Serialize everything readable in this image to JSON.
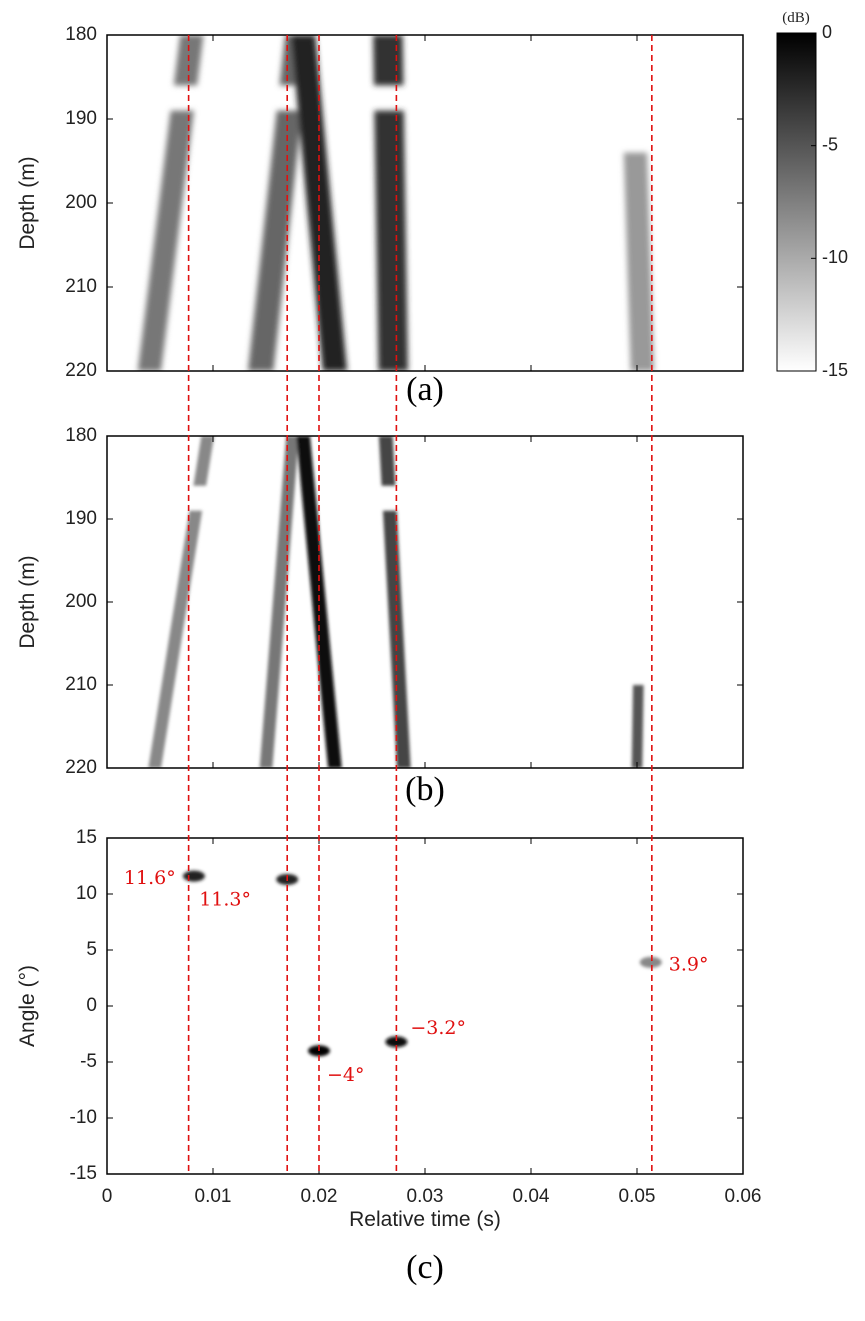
{
  "chart_data": [
    {
      "type": "heatmap",
      "panel_label": "(a)",
      "ylabel": "Depth (m)",
      "ylim": [
        220,
        180
      ],
      "y_ticks": [
        "180",
        "190",
        "200",
        "210",
        "220"
      ],
      "xlim": [
        0,
        0.06
      ],
      "tracks": [
        {
          "x_top": 0.008,
          "x_bottom": 0.004,
          "width": 0.0022,
          "level": -7,
          "gaps": [
            186,
            189
          ]
        },
        {
          "x_top": 0.018,
          "x_bottom": 0.0145,
          "width": 0.0024,
          "level": -6,
          "gaps": [
            186,
            189
          ]
        },
        {
          "x_top": 0.0185,
          "x_bottom": 0.0215,
          "width": 0.0023,
          "level": -2,
          "gaps": []
        },
        {
          "x_top": 0.0265,
          "x_bottom": 0.027,
          "width": 0.0028,
          "level": -3,
          "gaps": [
            186,
            189
          ]
        },
        {
          "x_top": 0.0495,
          "x_bottom": 0.0505,
          "width": 0.0022,
          "level": -9,
          "y_start": 194
        }
      ]
    },
    {
      "type": "heatmap",
      "panel_label": "(b)",
      "ylabel": "Depth (m)",
      "ylim": [
        220,
        180
      ],
      "y_ticks": [
        "180",
        "190",
        "200",
        "210",
        "220"
      ],
      "xlim": [
        0,
        0.06
      ],
      "tracks": [
        {
          "x_top": 0.0095,
          "x_bottom": 0.0045,
          "width": 0.0012,
          "level": -8,
          "gaps": [
            186,
            189
          ]
        },
        {
          "x_top": 0.0175,
          "x_bottom": 0.015,
          "width": 0.0012,
          "level": -7,
          "gaps": []
        },
        {
          "x_top": 0.0185,
          "x_bottom": 0.0215,
          "width": 0.0013,
          "level": -1,
          "gaps": []
        },
        {
          "x_top": 0.0263,
          "x_bottom": 0.028,
          "width": 0.0013,
          "level": -4,
          "gaps": [
            186,
            189
          ]
        },
        {
          "x_top": 0.0505,
          "x_bottom": 0.05,
          "width": 0.001,
          "level": -5,
          "y_start": 210
        }
      ]
    },
    {
      "type": "heatmap",
      "panel_label": "(c)",
      "xlabel": "Relative time (s)",
      "ylabel": "Angle (°)",
      "xlim": [
        0,
        0.06
      ],
      "ylim": [
        -15,
        15
      ],
      "x_ticks": [
        "0",
        "0.01",
        "0.02",
        "0.03",
        "0.04",
        "0.05",
        "0.06"
      ],
      "y_ticks": [
        "15",
        "10",
        "5",
        "0",
        "-5",
        "-10",
        "-15"
      ],
      "peaks": [
        {
          "t": 0.0082,
          "angle": 11.6,
          "level": -2
        },
        {
          "t": 0.017,
          "angle": 11.3,
          "level": -2
        },
        {
          "t": 0.02,
          "angle": -4.0,
          "level": 0
        },
        {
          "t": 0.0273,
          "angle": -3.2,
          "level": -1
        },
        {
          "t": 0.0513,
          "angle": 3.9,
          "level": -8
        }
      ],
      "annotations": [
        {
          "text": "11.6°",
          "t": 0.0082,
          "angle": 11.6
        },
        {
          "text": "11.3°",
          "t": 0.017,
          "angle": 11.3
        },
        {
          "text": "−4°",
          "t": 0.02,
          "angle": -4.0
        },
        {
          "text": "−3.2°",
          "t": 0.0273,
          "angle": -3.2
        },
        {
          "text": "3.9°",
          "t": 0.0513,
          "angle": 3.9
        }
      ]
    }
  ],
  "reference_lines_time": [
    0.0077,
    0.017,
    0.02,
    0.0273,
    0.0514
  ],
  "colorbar": {
    "unit": "(dB)",
    "ticks": [
      "0",
      "-5",
      "-10",
      "-15"
    ],
    "range": [
      -15,
      0
    ],
    "colors": [
      "#ffffff",
      "#000000"
    ]
  },
  "colors": {
    "reference_line": "#e01010",
    "annotation": "#e01010"
  }
}
